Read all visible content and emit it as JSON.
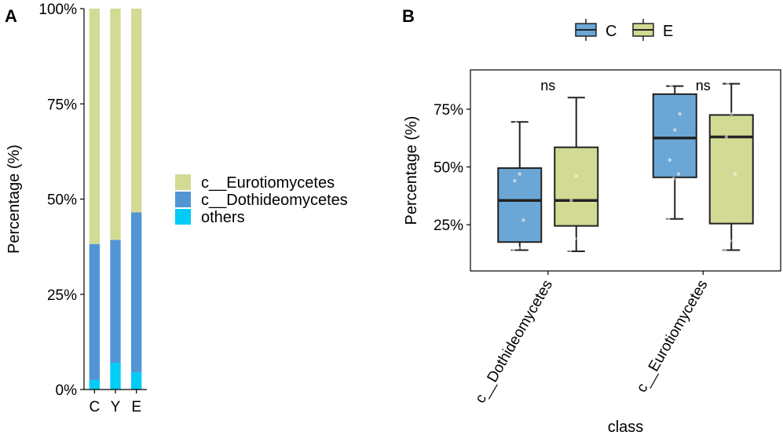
{
  "chart_data": [
    {
      "panel": "A",
      "type": "bar",
      "stacked": true,
      "categories": [
        "C",
        "Y",
        "E"
      ],
      "series": [
        {
          "name": "others",
          "color": "#00CCF5",
          "values": [
            2.5,
            7,
            4.5
          ]
        },
        {
          "name": "c__Dothideomycetes",
          "color": "#5295D5",
          "values": [
            35.7,
            32.3,
            42
          ]
        },
        {
          "name": "c__Eurotiomycetes",
          "color": "#D2DA94",
          "values": [
            61.8,
            60.7,
            53.5
          ]
        }
      ],
      "legend_order": [
        "c__Eurotiomycetes",
        "c__Dothideomycetes",
        "others"
      ],
      "ylabel": "Percentage (%)",
      "ylim": [
        0,
        100
      ],
      "yticks": [
        "0%",
        "25%",
        "50%",
        "75%",
        "100%"
      ],
      "legend_position": "right"
    },
    {
      "panel": "B",
      "type": "box",
      "categories": [
        "c__Dothideomycetes",
        "c__Eurotiomycetes"
      ],
      "groups": [
        {
          "name": "C",
          "color": "#6BA7D6"
        },
        {
          "name": "E",
          "color": "#D2DA94"
        }
      ],
      "boxes": [
        {
          "category": "c__Dothideomycetes",
          "group": "C",
          "min": 14,
          "q1": 17.5,
          "median": 35.5,
          "q3": 49.5,
          "max": 69.5,
          "points": [
            14,
            15,
            27,
            44,
            47,
            51,
            69
          ]
        },
        {
          "category": "c__Dothideomycetes",
          "group": "E",
          "min": 13.5,
          "q1": 24.5,
          "median": 35.5,
          "q3": 58.5,
          "max": 80,
          "points": [
            13.5,
            19,
            23,
            35.5,
            46,
            63,
            78
          ]
        },
        {
          "category": "c__Eurotiomycetes",
          "group": "C",
          "min": 27.5,
          "q1": 45.5,
          "median": 62.5,
          "q3": 81.5,
          "max": 85,
          "points": [
            27.5,
            45,
            47,
            53,
            66,
            73,
            85
          ]
        },
        {
          "category": "c__Eurotiomycetes",
          "group": "E",
          "min": 14,
          "q1": 25.5,
          "median": 63,
          "q3": 72.5,
          "max": 86,
          "points": [
            14,
            18,
            47,
            63,
            73,
            80,
            86
          ]
        }
      ],
      "annotations": [
        "ns",
        "ns"
      ],
      "xlabel": "class",
      "ylabel": "Percentage (%)",
      "ylim": [
        5,
        92
      ],
      "yticks": [
        "25%",
        "50%",
        "75%"
      ],
      "ytick_values": [
        25,
        50,
        75
      ],
      "legend_position": "top"
    }
  ],
  "labels": {
    "panel_a": "A",
    "panel_b": "B"
  }
}
